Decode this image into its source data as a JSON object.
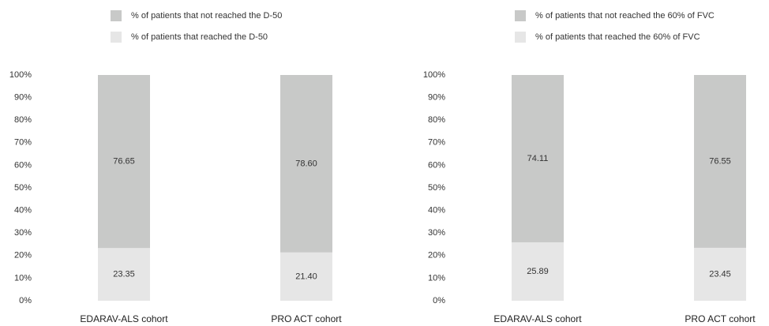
{
  "chart_data": [
    {
      "type": "stacked_bar",
      "categories": [
        "EDARAV-ALS cohort",
        "PRO ACT cohort"
      ],
      "series": [
        {
          "name": "% of patients that not reached the D-50",
          "color": "#c8c9c8",
          "values": [
            76.65,
            78.6
          ],
          "value_labels": [
            "76.65",
            "78.60"
          ]
        },
        {
          "name": "% of patients that reached the D-50",
          "color": "#e6e6e6",
          "values": [
            23.35,
            21.4
          ],
          "value_labels": [
            "23.35",
            "21.40"
          ]
        }
      ],
      "ylim": [
        0,
        100
      ],
      "yticks": [
        {
          "value": 0,
          "label": "0%"
        },
        {
          "value": 10,
          "label": "10%"
        },
        {
          "value": 20,
          "label": "20%"
        },
        {
          "value": 30,
          "label": "30%"
        },
        {
          "value": 40,
          "label": "40%"
        },
        {
          "value": 50,
          "label": "50%"
        },
        {
          "value": 60,
          "label": "60%"
        },
        {
          "value": 70,
          "label": "70%"
        },
        {
          "value": 80,
          "label": "80%"
        },
        {
          "value": 90,
          "label": "90%"
        },
        {
          "value": 100,
          "label": "100%"
        }
      ],
      "legend": "top"
    },
    {
      "type": "stacked_bar",
      "categories": [
        "EDARAV-ALS cohort",
        "PRO ACT cohort"
      ],
      "series": [
        {
          "name": "% of patients that not reached the 60% of FVC",
          "color": "#c8c9c8",
          "values": [
            74.11,
            76.55
          ],
          "value_labels": [
            "74.11",
            "76.55"
          ]
        },
        {
          "name": "% of patients that reached the 60% of FVC",
          "color": "#e6e6e6",
          "values": [
            25.89,
            23.45
          ],
          "value_labels": [
            "25.89",
            "23.45"
          ]
        }
      ],
      "ylim": [
        0,
        100
      ],
      "yticks": [
        {
          "value": 0,
          "label": "0%"
        },
        {
          "value": 10,
          "label": "10%"
        },
        {
          "value": 20,
          "label": "20%"
        },
        {
          "value": 30,
          "label": "30%"
        },
        {
          "value": 40,
          "label": "40%"
        },
        {
          "value": 50,
          "label": "50%"
        },
        {
          "value": 60,
          "label": "60%"
        },
        {
          "value": 70,
          "label": "70%"
        },
        {
          "value": 80,
          "label": "80%"
        },
        {
          "value": 90,
          "label": "90%"
        },
        {
          "value": 100,
          "label": "100%"
        }
      ],
      "legend": "top"
    }
  ]
}
